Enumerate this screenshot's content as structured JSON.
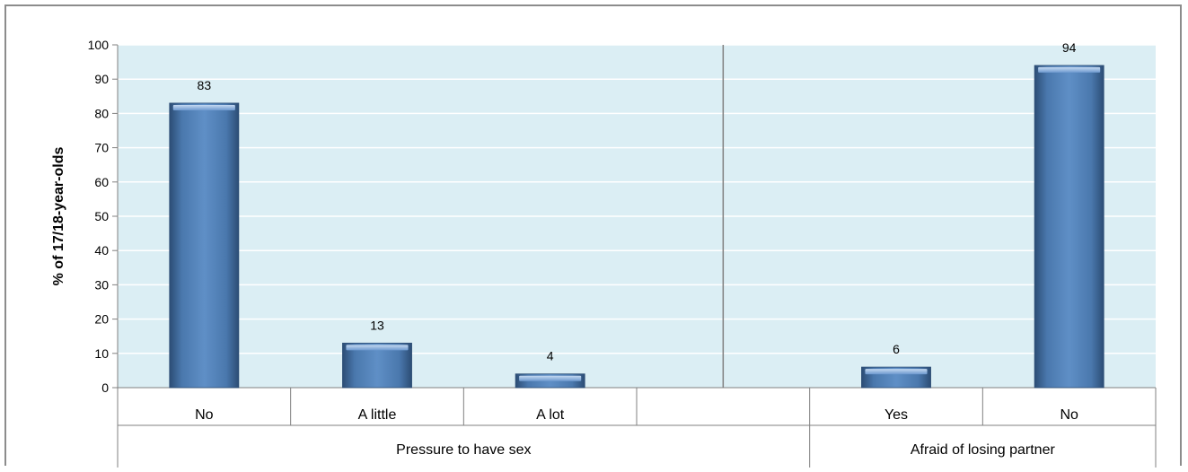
{
  "chart_data": {
    "type": "bar",
    "ylabel": "% of 17/18-year-olds",
    "xlabel": "",
    "ylim": [
      0,
      100
    ],
    "yticks": [
      0,
      10,
      20,
      30,
      40,
      50,
      60,
      70,
      80,
      90,
      100
    ],
    "grid": true,
    "legend": "none",
    "categories": [
      "No",
      "A little",
      "A lot",
      "",
      "Yes",
      "No"
    ],
    "values": [
      83,
      13,
      4,
      null,
      6,
      94
    ],
    "groups": [
      {
        "label": "Pressure to have sex",
        "categories": [
          "No",
          "A little",
          "A lot",
          ""
        ]
      },
      {
        "label": "Afraid of losing partner",
        "categories": [
          "Yes",
          "No"
        ]
      }
    ],
    "colors": {
      "bar": "#4f81bd",
      "bar_dark": "#2c4d75",
      "bar_light": "#95b3d7",
      "plot_background": "#dbeef4",
      "gridline": "#ffffff",
      "axis": "#808080"
    }
  }
}
